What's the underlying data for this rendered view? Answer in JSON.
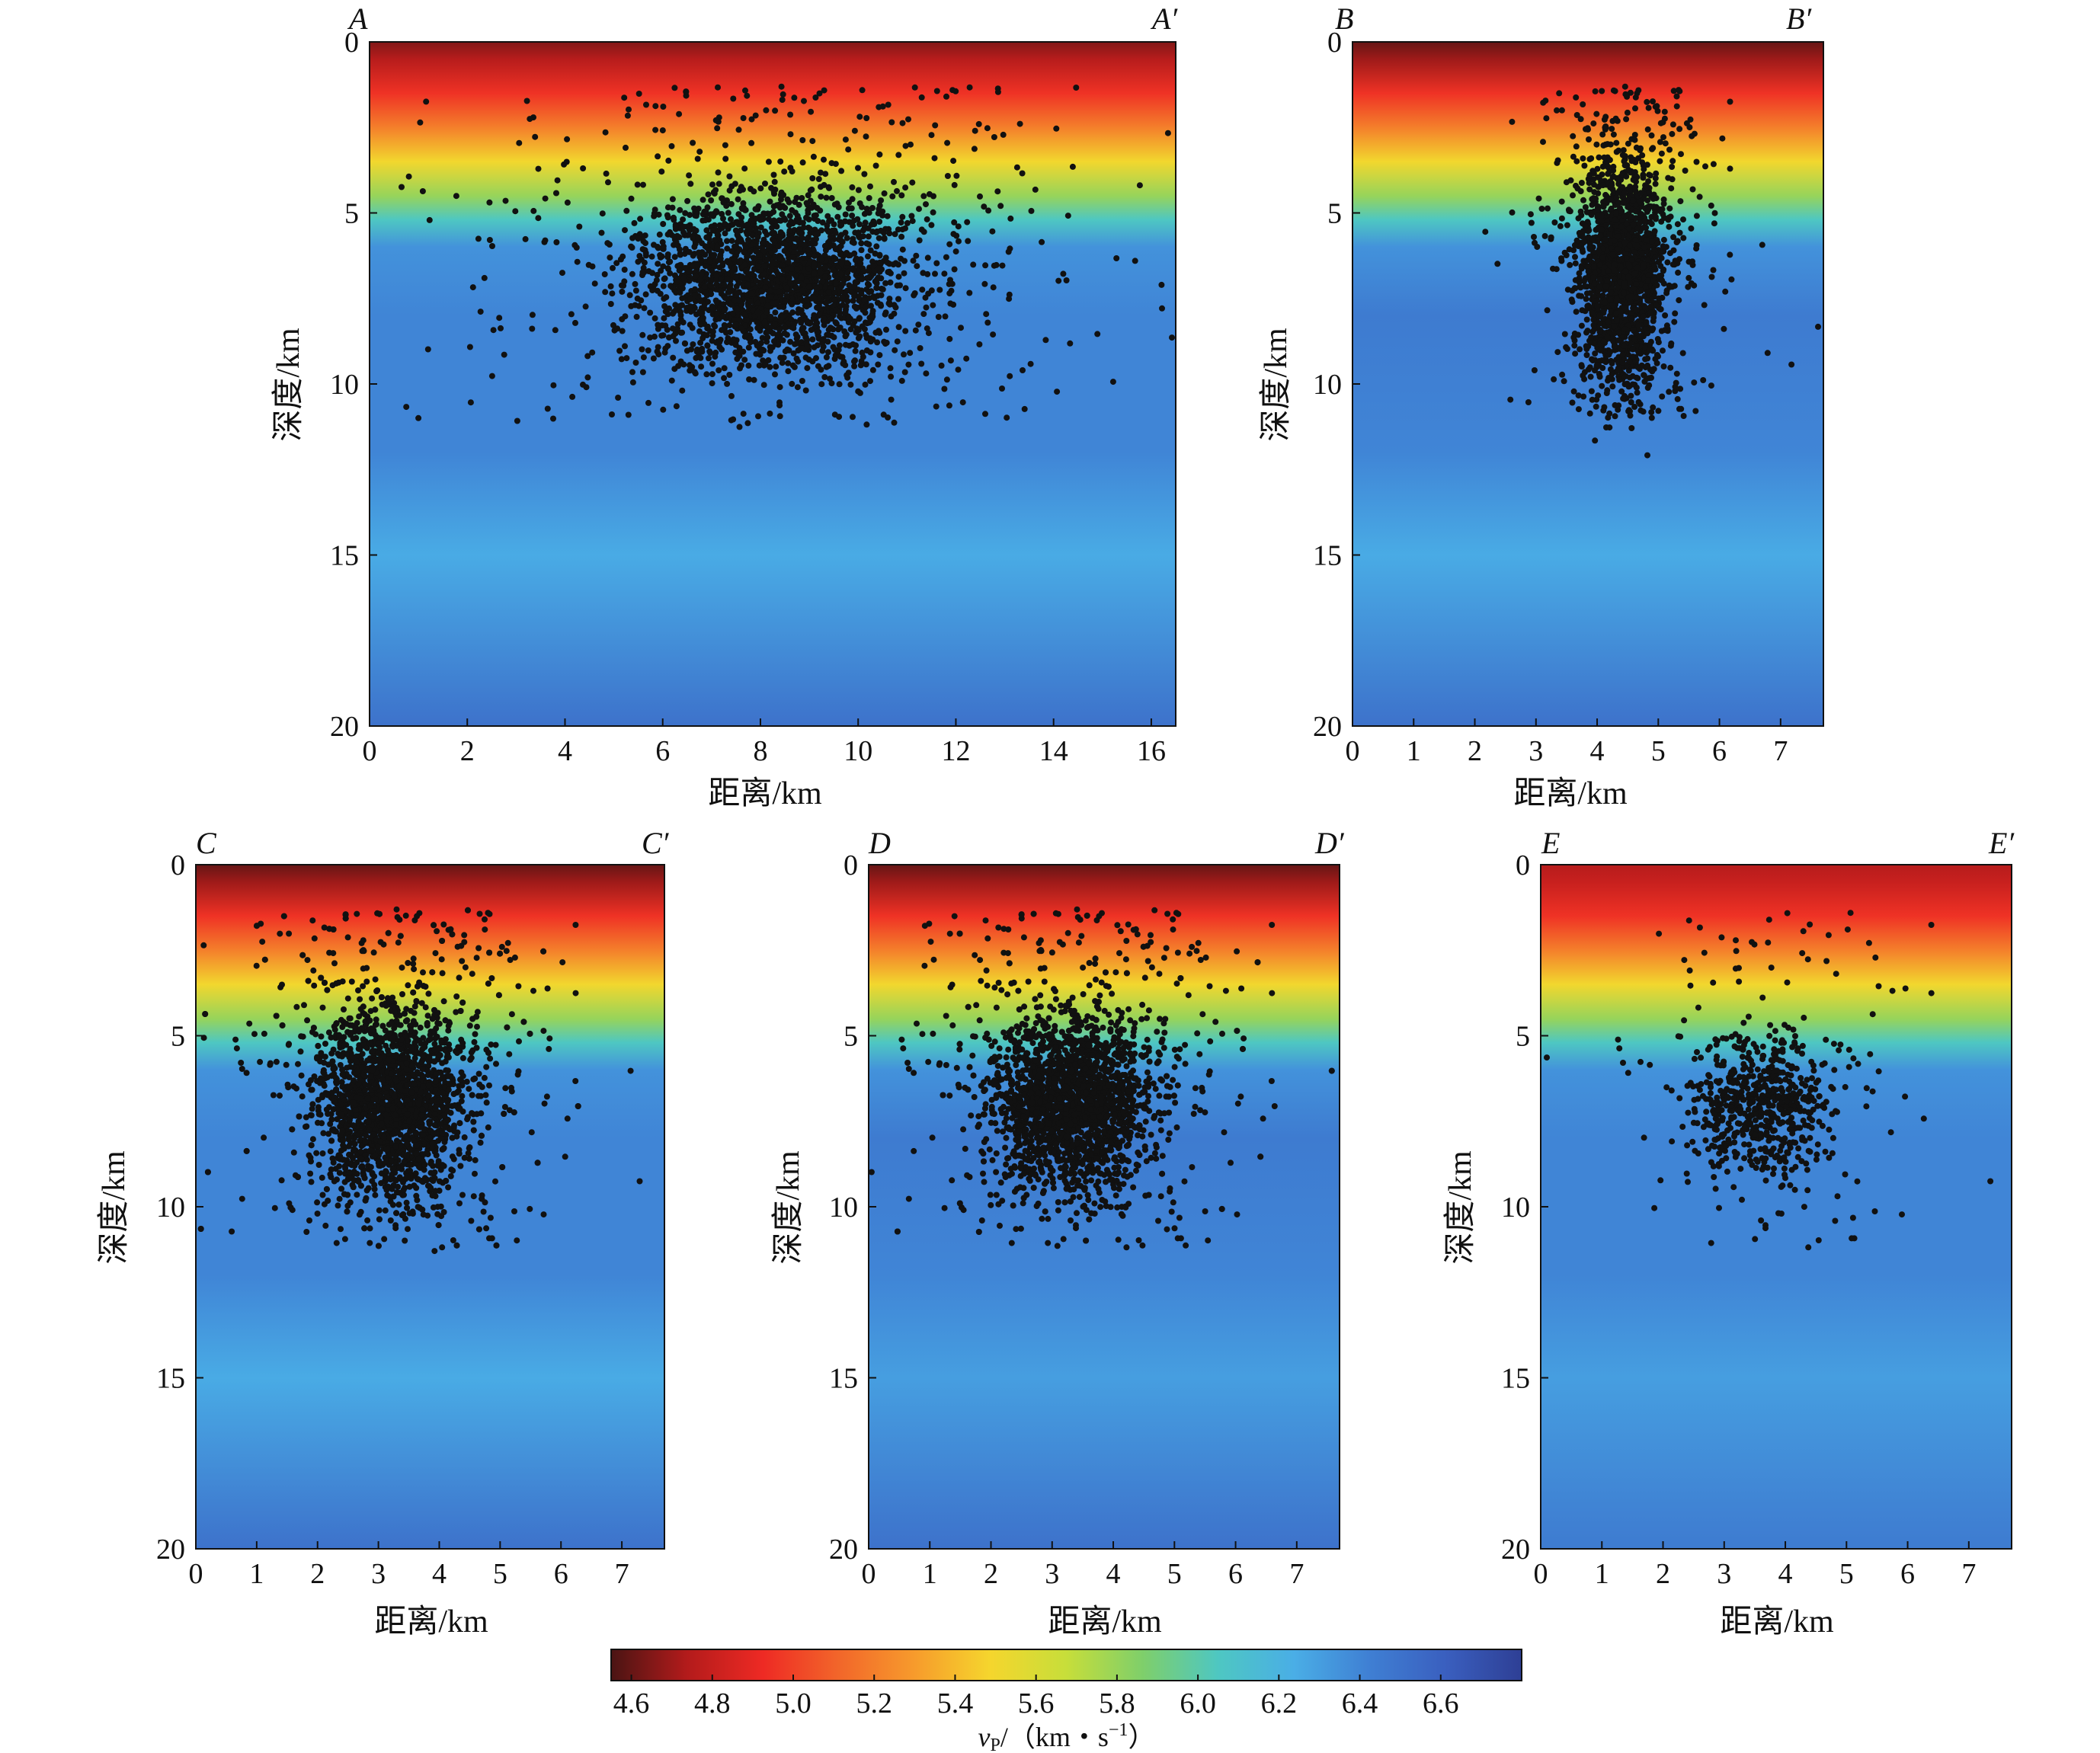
{
  "chart_data": [
    {
      "type": "heatmap",
      "id": "A",
      "corner_left": "A",
      "corner_right": "A′",
      "xlabel": "距离/km",
      "ylabel": "深度/km",
      "xlim": [
        0,
        16.5
      ],
      "ylim": [
        20,
        0
      ],
      "xticks": [
        "0",
        "2",
        "4",
        "6",
        "8",
        "10",
        "12",
        "14",
        "16"
      ],
      "yticks": [
        "0",
        "5",
        "10",
        "15",
        "20"
      ],
      "velocity_profile": {
        "depth": [
          0,
          0.5,
          1.5,
          2.5,
          3.5,
          4.5,
          5.2,
          6,
          8,
          12,
          15,
          20
        ],
        "vp": [
          4.65,
          4.75,
          4.95,
          5.2,
          5.5,
          5.8,
          6.05,
          6.35,
          6.4,
          6.4,
          6.25,
          6.5
        ]
      },
      "events": {
        "cluster_x": 8.2,
        "cluster_depth": 7.0,
        "spread_x": 1.4,
        "spread_depth": 1.2,
        "count": 2600
      }
    },
    {
      "type": "heatmap",
      "id": "B",
      "corner_left": "B",
      "corner_right": "B′",
      "xlabel": "距离/km",
      "ylabel": "深度/km",
      "xlim": [
        0,
        7.7
      ],
      "ylim": [
        20,
        0
      ],
      "xticks": [
        "0",
        "1",
        "2",
        "3",
        "4",
        "5",
        "6",
        "7"
      ],
      "yticks": [
        "0",
        "5",
        "10",
        "15",
        "20"
      ],
      "velocity_profile": {
        "depth": [
          0,
          0.5,
          1.5,
          2.5,
          3.5,
          4.5,
          5.2,
          6,
          8,
          12,
          15,
          20
        ],
        "vp": [
          4.6,
          4.7,
          4.95,
          5.2,
          5.5,
          5.8,
          6.05,
          6.35,
          6.45,
          6.4,
          6.25,
          6.5
        ]
      },
      "events": {
        "cluster_x": 4.4,
        "cluster_depth": 6.8,
        "spread_x": 0.35,
        "spread_depth": 1.6,
        "count": 1900
      }
    },
    {
      "type": "heatmap",
      "id": "C",
      "corner_left": "C",
      "corner_right": "C′",
      "xlabel": "距离/km",
      "ylabel": "深度/km",
      "xlim": [
        0,
        7.7
      ],
      "ylim": [
        20,
        0
      ],
      "xticks": [
        "0",
        "1",
        "2",
        "3",
        "4",
        "5",
        "6",
        "7"
      ],
      "yticks": [
        "0",
        "5",
        "10",
        "15",
        "20"
      ],
      "velocity_profile": {
        "depth": [
          0,
          0.5,
          1.5,
          2.5,
          3.5,
          4.5,
          5.2,
          6,
          8,
          12,
          15,
          20
        ],
        "vp": [
          4.6,
          4.7,
          4.95,
          5.2,
          5.5,
          5.8,
          6.05,
          6.35,
          6.4,
          6.4,
          6.25,
          6.5
        ]
      },
      "events": {
        "cluster_x": 3.2,
        "cluster_depth": 7.0,
        "spread_x": 0.6,
        "spread_depth": 1.3,
        "count": 2600
      }
    },
    {
      "type": "heatmap",
      "id": "D",
      "corner_left": "D",
      "corner_right": "D′",
      "xlabel": "距离/km",
      "ylabel": "深度/km",
      "xlim": [
        0,
        7.7
      ],
      "ylim": [
        20,
        0
      ],
      "xticks": [
        "0",
        "1",
        "2",
        "3",
        "4",
        "5",
        "6",
        "7"
      ],
      "yticks": [
        "0",
        "5",
        "10",
        "15",
        "20"
      ],
      "velocity_profile": {
        "depth": [
          0,
          0.5,
          1.5,
          2.5,
          3.5,
          4.5,
          5.2,
          6,
          8,
          12,
          15,
          20
        ],
        "vp": [
          4.6,
          4.7,
          4.95,
          5.2,
          5.5,
          5.8,
          6.05,
          6.35,
          6.45,
          6.4,
          6.3,
          6.5
        ]
      },
      "events": {
        "cluster_x": 3.3,
        "cluster_depth": 7.0,
        "spread_x": 0.65,
        "spread_depth": 1.2,
        "count": 2500
      }
    },
    {
      "type": "heatmap",
      "id": "E",
      "corner_left": "E",
      "corner_right": "E′",
      "xlabel": "距离/km",
      "ylabel": "深度/km",
      "xlim": [
        0,
        7.7
      ],
      "ylim": [
        20,
        0
      ],
      "xticks": [
        "0",
        "1",
        "2",
        "3",
        "4",
        "5",
        "6",
        "7"
      ],
      "yticks": [
        "0",
        "5",
        "10",
        "15",
        "20"
      ],
      "velocity_profile": {
        "depth": [
          0,
          0.5,
          1.5,
          2.5,
          3.5,
          4.5,
          5.2,
          6,
          8,
          12,
          15,
          20
        ],
        "vp": [
          4.75,
          4.8,
          4.95,
          5.2,
          5.5,
          5.8,
          6.05,
          6.35,
          6.4,
          6.4,
          6.3,
          6.45
        ]
      },
      "events": {
        "cluster_x": 3.6,
        "cluster_depth": 7.0,
        "spread_x": 0.55,
        "spread_depth": 1.0,
        "count": 700
      }
    }
  ],
  "colorbar": {
    "range": [
      4.55,
      6.8
    ],
    "ticks": [
      "4.6",
      "4.8",
      "5.0",
      "5.2",
      "5.4",
      "5.6",
      "5.8",
      "6.0",
      "6.2",
      "6.4",
      "6.6"
    ],
    "label_symbol": "v",
    "label_subscript": "P",
    "label_rest": "/（km・s",
    "label_exponent": "−1",
    "label_close": "）",
    "colors": [
      "#4a1413",
      "#b31b1b",
      "#ee2a24",
      "#f2662a",
      "#f79b2c",
      "#f5d62d",
      "#c7de3a",
      "#7fcf6a",
      "#4ec7c2",
      "#4aaee6",
      "#3f7fd3",
      "#3a5fbf",
      "#2e3f95"
    ]
  }
}
